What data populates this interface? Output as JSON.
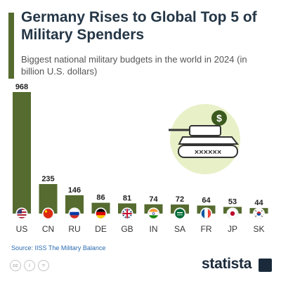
{
  "header": {
    "title": "Germany Rises to Global Top 5 of Military Spenders",
    "subtitle": "Biggest national military budgets in the world in 2024 (in billion U.S. dollars)"
  },
  "illustration": {
    "icon": "tank-with-dollar-coin-icon",
    "dollar_sign": "$"
  },
  "footer": {
    "source": "Source: IISS The Military Balance",
    "license_icons": [
      "cc",
      "i",
      "="
    ],
    "brand": "statista"
  },
  "colors": {
    "bar": "#556b2f",
    "accent": "#556b2f",
    "illustration_bg": "#e8f0c8",
    "coin": "#3d5a1e",
    "title": "#243646"
  },
  "chart_data": {
    "type": "bar",
    "title": "Germany Rises to Global Top 5 of Military Spenders",
    "subtitle": "Biggest national military budgets in the world in 2024 (in billion U.S. dollars)",
    "categories": [
      "US",
      "CN",
      "RU",
      "DE",
      "GB",
      "IN",
      "SA",
      "FR",
      "JP",
      "SK"
    ],
    "values": [
      968,
      235,
      146,
      86,
      81,
      74,
      72,
      64,
      53,
      44
    ],
    "flags": [
      "us-flag-icon",
      "cn-flag-icon",
      "ru-flag-icon",
      "de-flag-icon",
      "gb-flag-icon",
      "in-flag-icon",
      "sa-flag-icon",
      "fr-flag-icon",
      "jp-flag-icon",
      "sk-flag-icon"
    ],
    "ylim": [
      0,
      968
    ],
    "grid": false,
    "legend": "none"
  }
}
